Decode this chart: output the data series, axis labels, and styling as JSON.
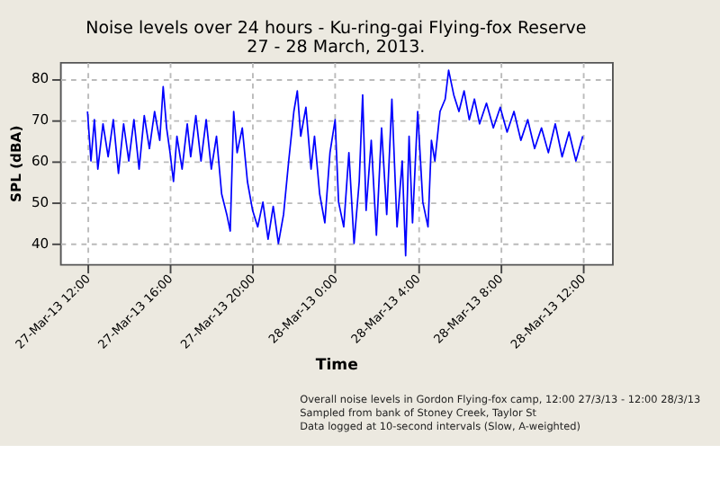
{
  "chart_data": {
    "type": "line",
    "title": "Noise levels over 24 hours - Ku-ring-gai Flying-fox Reserve",
    "subtitle": "27 - 28 March, 2013.",
    "xlabel": "Time",
    "ylabel": "SPL (dBA)",
    "x": [
      "2013-03-27T12:00",
      "2013-03-27T12:10",
      "2013-03-27T12:20",
      "2013-03-27T12:30",
      "2013-03-27T12:45",
      "2013-03-27T13:00",
      "2013-03-27T13:15",
      "2013-03-27T13:30",
      "2013-03-27T13:45",
      "2013-03-27T14:00",
      "2013-03-27T14:15",
      "2013-03-27T14:30",
      "2013-03-27T14:45",
      "2013-03-27T15:00",
      "2013-03-27T15:15",
      "2013-03-27T15:30",
      "2013-03-27T15:40",
      "2013-03-27T15:50",
      "2013-03-27T16:00",
      "2013-03-27T16:10",
      "2013-03-27T16:20",
      "2013-03-27T16:35",
      "2013-03-27T16:50",
      "2013-03-27T17:00",
      "2013-03-27T17:15",
      "2013-03-27T17:30",
      "2013-03-27T17:45",
      "2013-03-27T18:00",
      "2013-03-27T18:15",
      "2013-03-27T18:30",
      "2013-03-27T18:45",
      "2013-03-27T18:55",
      "2013-03-27T19:05",
      "2013-03-27T19:15",
      "2013-03-27T19:30",
      "2013-03-27T19:45",
      "2013-03-27T20:00",
      "2013-03-27T20:15",
      "2013-03-27T20:30",
      "2013-03-27T20:45",
      "2013-03-27T21:00",
      "2013-03-27T21:15",
      "2013-03-27T21:30",
      "2013-03-27T21:45",
      "2013-03-27T22:00",
      "2013-03-27T22:10",
      "2013-03-27T22:20",
      "2013-03-27T22:35",
      "2013-03-27T22:50",
      "2013-03-27T23:00",
      "2013-03-27T23:15",
      "2013-03-27T23:30",
      "2013-03-27T23:45",
      "2013-03-28T00:00",
      "2013-03-28T00:10",
      "2013-03-28T00:25",
      "2013-03-28T00:40",
      "2013-03-28T00:55",
      "2013-03-28T01:10",
      "2013-03-28T01:20",
      "2013-03-28T01:30",
      "2013-03-28T01:45",
      "2013-03-28T02:00",
      "2013-03-28T02:15",
      "2013-03-28T02:30",
      "2013-03-28T02:45",
      "2013-03-28T03:00",
      "2013-03-28T03:15",
      "2013-03-28T03:25",
      "2013-03-28T03:35",
      "2013-03-28T03:45",
      "2013-03-28T04:00",
      "2013-03-28T04:15",
      "2013-03-28T04:30",
      "2013-03-28T04:40",
      "2013-03-28T04:50",
      "2013-03-28T05:05",
      "2013-03-28T05:20",
      "2013-03-28T05:30",
      "2013-03-28T05:45",
      "2013-03-28T06:00",
      "2013-03-28T06:15",
      "2013-03-28T06:30",
      "2013-03-28T06:45",
      "2013-03-28T07:00",
      "2013-03-28T07:20",
      "2013-03-28T07:40",
      "2013-03-28T08:00",
      "2013-03-28T08:20",
      "2013-03-28T08:40",
      "2013-03-28T09:00",
      "2013-03-28T09:20",
      "2013-03-28T09:40",
      "2013-03-28T10:00",
      "2013-03-28T10:20",
      "2013-03-28T10:40",
      "2013-03-28T11:00",
      "2013-03-28T11:20",
      "2013-03-28T11:40",
      "2013-03-28T12:00"
    ],
    "series": [
      {
        "color": "#0000ff",
        "values": [
          72,
          60,
          70,
          58,
          69,
          61,
          70,
          57,
          69,
          60,
          70,
          58,
          71,
          63,
          72,
          65,
          78,
          68,
          62,
          55,
          66,
          58,
          69,
          61,
          71,
          60,
          70,
          58,
          66,
          52,
          47,
          43,
          72,
          62,
          68,
          55,
          48,
          44,
          50,
          41,
          49,
          40,
          47,
          60,
          72,
          77,
          66,
          73,
          58,
          66,
          52,
          45,
          62,
          70,
          50,
          44,
          62,
          40,
          55,
          76,
          48,
          65,
          42,
          68,
          47,
          75,
          44,
          60,
          37,
          66,
          45,
          72,
          50,
          44,
          65,
          60,
          72,
          75,
          82,
          76,
          72,
          77,
          70,
          75,
          69,
          74,
          68,
          73,
          67,
          72,
          65,
          70,
          63,
          68,
          62,
          69,
          61,
          67,
          60,
          66
        ]
      }
    ],
    "xlim": [
      "2013-03-27T10:40",
      "2013-03-28T13:25"
    ],
    "xticks": [
      {
        "value": "2013-03-27T12:00",
        "label": "27-Mar-13 12:00"
      },
      {
        "value": "2013-03-27T16:00",
        "label": "27-Mar-13 16:00"
      },
      {
        "value": "2013-03-27T20:00",
        "label": "27-Mar-13 20:00"
      },
      {
        "value": "2013-03-28T00:00",
        "label": "28-Mar-13 0:00"
      },
      {
        "value": "2013-03-28T04:00",
        "label": "28-Mar-13 4:00"
      },
      {
        "value": "2013-03-28T08:00",
        "label": "28-Mar-13 8:00"
      },
      {
        "value": "2013-03-28T12:00",
        "label": "28-Mar-13 12:00"
      }
    ],
    "ylim": [
      35,
      84
    ],
    "yticks": [
      40,
      50,
      60,
      70,
      80
    ],
    "grid": true,
    "marker": "none",
    "line_style": "solid",
    "annotations": [
      "Overall noise levels in Gordon Flying-fox camp, 12:00 27/3/13 - 12:00 28/3/13",
      "Sampled from bank of Stoney Creek, Taylor St",
      "Data logged at 10-second intervals (Slow, A-weighted)"
    ]
  }
}
